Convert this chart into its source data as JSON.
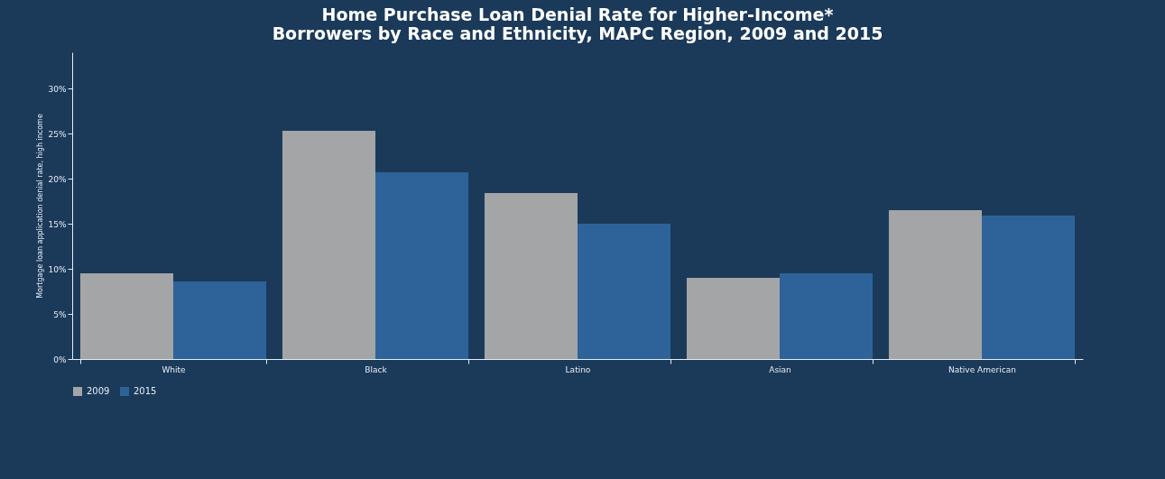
{
  "chart_data": {
    "type": "bar",
    "title": "Home Purchase Loan Denial Rate for Higher-Income* Borrowers by Race and Ethnicity, MAPC Region, 2009 and 2015",
    "ylabel": "Mortgage loan application denial rate, high income",
    "categories": [
      "White",
      "Black",
      "Latino",
      "Asian",
      "Native American"
    ],
    "series": [
      {
        "name": "2009",
        "color": "#a3a5a7",
        "values": [
          9.5,
          25.3,
          18.4,
          9.0,
          16.5
        ]
      },
      {
        "name": "2015",
        "color": "#2e6399",
        "values": [
          8.6,
          20.7,
          15.0,
          9.5,
          15.9
        ]
      }
    ],
    "ylim": [
      0,
      34
    ],
    "yticks": [
      {
        "value": 0,
        "label": "0%"
      },
      {
        "value": 5,
        "label": "5%"
      },
      {
        "value": 10,
        "label": "10%"
      },
      {
        "value": 15,
        "label": "15%"
      },
      {
        "value": 20,
        "label": "20%"
      },
      {
        "value": 25,
        "label": "25%"
      },
      {
        "value": 30,
        "label": "30%"
      }
    ],
    "grid": false,
    "legend": "bottom"
  }
}
